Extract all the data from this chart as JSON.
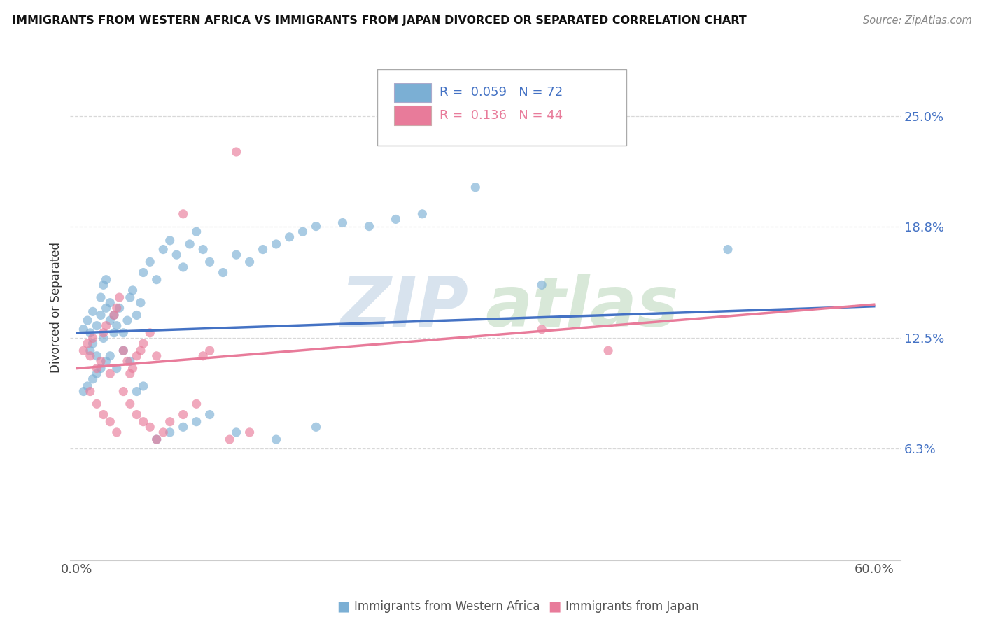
{
  "title": "IMMIGRANTS FROM WESTERN AFRICA VS IMMIGRANTS FROM JAPAN DIVORCED OR SEPARATED CORRELATION CHART",
  "source": "Source: ZipAtlas.com",
  "xlabel_blue": "Immigrants from Western Africa",
  "xlabel_pink": "Immigrants from Japan",
  "ylabel": "Divorced or Separated",
  "xlim": [
    -0.005,
    0.62
  ],
  "ylim": [
    0.0,
    0.285
  ],
  "ytick_vals": [
    0.063,
    0.125,
    0.188,
    0.25
  ],
  "ytick_labels": [
    "6.3%",
    "12.5%",
    "18.8%",
    "25.0%"
  ],
  "blue_R": 0.059,
  "blue_N": 72,
  "pink_R": 0.136,
  "pink_N": 44,
  "blue_color": "#7BAFD4",
  "pink_color": "#E87B9A",
  "blue_trend_color": "#4472C4",
  "pink_trend_color": "#E87B9A",
  "ytick_color": "#4472C4",
  "legend_R_N_color": "#4472C4",
  "watermark_zip_color": "#C8D8E8",
  "watermark_atlas_color": "#C8DFC8",
  "background_color": "#ffffff",
  "grid_color": "#d8d8d8",
  "blue_scatter_x": [
    0.005,
    0.008,
    0.01,
    0.012,
    0.015,
    0.018,
    0.02,
    0.022,
    0.025,
    0.028,
    0.01,
    0.012,
    0.015,
    0.018,
    0.02,
    0.022,
    0.025,
    0.028,
    0.03,
    0.032,
    0.035,
    0.038,
    0.04,
    0.042,
    0.045,
    0.048,
    0.05,
    0.055,
    0.06,
    0.065,
    0.07,
    0.075,
    0.08,
    0.085,
    0.09,
    0.095,
    0.1,
    0.11,
    0.12,
    0.13,
    0.14,
    0.15,
    0.16,
    0.17,
    0.18,
    0.2,
    0.22,
    0.24,
    0.26,
    0.3,
    0.005,
    0.008,
    0.012,
    0.015,
    0.018,
    0.022,
    0.025,
    0.03,
    0.035,
    0.04,
    0.045,
    0.05,
    0.06,
    0.07,
    0.08,
    0.09,
    0.1,
    0.12,
    0.15,
    0.18,
    0.49,
    0.35
  ],
  "blue_scatter_y": [
    0.13,
    0.135,
    0.128,
    0.14,
    0.132,
    0.138,
    0.125,
    0.142,
    0.135,
    0.128,
    0.118,
    0.122,
    0.115,
    0.148,
    0.155,
    0.158,
    0.145,
    0.138,
    0.132,
    0.142,
    0.128,
    0.135,
    0.148,
    0.152,
    0.138,
    0.145,
    0.162,
    0.168,
    0.158,
    0.175,
    0.18,
    0.172,
    0.165,
    0.178,
    0.185,
    0.175,
    0.168,
    0.162,
    0.172,
    0.168,
    0.175,
    0.178,
    0.182,
    0.185,
    0.188,
    0.19,
    0.188,
    0.192,
    0.195,
    0.21,
    0.095,
    0.098,
    0.102,
    0.105,
    0.108,
    0.112,
    0.115,
    0.108,
    0.118,
    0.112,
    0.095,
    0.098,
    0.068,
    0.072,
    0.075,
    0.078,
    0.082,
    0.072,
    0.068,
    0.075,
    0.175,
    0.155
  ],
  "pink_scatter_x": [
    0.005,
    0.008,
    0.01,
    0.012,
    0.015,
    0.018,
    0.02,
    0.022,
    0.025,
    0.028,
    0.03,
    0.032,
    0.035,
    0.038,
    0.04,
    0.042,
    0.045,
    0.048,
    0.05,
    0.055,
    0.01,
    0.015,
    0.02,
    0.025,
    0.03,
    0.035,
    0.04,
    0.045,
    0.05,
    0.055,
    0.06,
    0.065,
    0.07,
    0.08,
    0.09,
    0.1,
    0.115,
    0.13,
    0.095,
    0.06,
    0.12,
    0.08,
    0.35,
    0.4
  ],
  "pink_scatter_y": [
    0.118,
    0.122,
    0.115,
    0.125,
    0.108,
    0.112,
    0.128,
    0.132,
    0.105,
    0.138,
    0.142,
    0.148,
    0.118,
    0.112,
    0.105,
    0.108,
    0.115,
    0.118,
    0.122,
    0.128,
    0.095,
    0.088,
    0.082,
    0.078,
    0.072,
    0.095,
    0.088,
    0.082,
    0.078,
    0.075,
    0.068,
    0.072,
    0.078,
    0.082,
    0.088,
    0.118,
    0.068,
    0.072,
    0.115,
    0.115,
    0.23,
    0.195,
    0.13,
    0.118
  ],
  "blue_trend_intercept": 0.128,
  "blue_trend_slope": 0.025,
  "pink_trend_intercept": 0.108,
  "pink_trend_slope": 0.06
}
